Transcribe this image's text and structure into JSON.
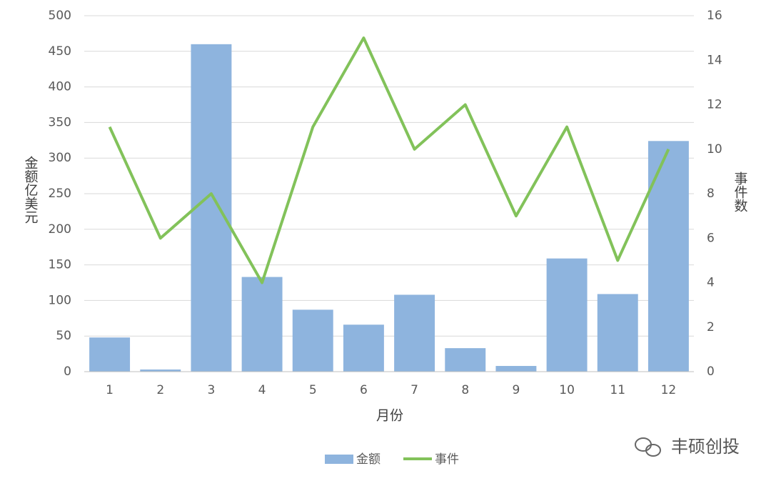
{
  "chart_data": {
    "type": "bar",
    "categories": [
      "1",
      "2",
      "3",
      "4",
      "5",
      "6",
      "7",
      "8",
      "9",
      "10",
      "11",
      "12"
    ],
    "series": [
      {
        "name": "金额",
        "color": "#8eb4de",
        "values": [
          48,
          3,
          460,
          133,
          87,
          66,
          108,
          33,
          8,
          159,
          109,
          324
        ]
      },
      {
        "name": "事件",
        "color": "#82c25a",
        "type": "line",
        "axis": "y2",
        "values": [
          11,
          6,
          8,
          4,
          11,
          15,
          10,
          12,
          7,
          11,
          5,
          10
        ]
      }
    ],
    "ylim": [
      0,
      500
    ],
    "yticks": [
      0,
      50,
      100,
      150,
      200,
      250,
      300,
      350,
      400,
      450,
      500
    ],
    "y2lim": [
      0,
      16
    ],
    "y2ticks": [
      0,
      2,
      4,
      6,
      8,
      10,
      12,
      14,
      16
    ],
    "xlabel": "月份",
    "ylabel": "金额亿美元",
    "y2label": "事件数",
    "grid": true,
    "legend": "bottom",
    "watermark": "丰硕创投"
  }
}
